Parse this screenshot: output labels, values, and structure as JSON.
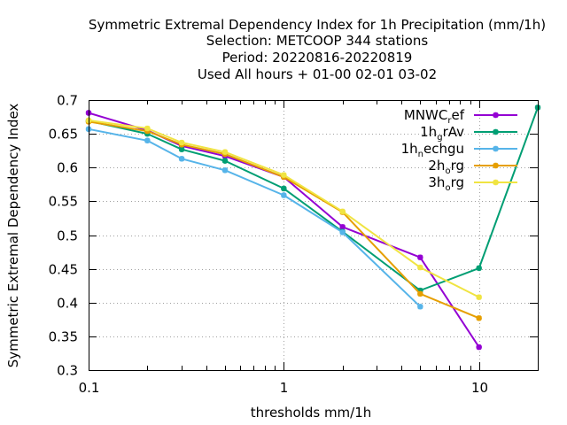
{
  "chart_data": {
    "type": "line",
    "title_lines": [
      "Symmetric Extremal Dependency Index  for 1h Precipitation (mm/1h)",
      "Selection: METCOOP    344 stations",
      "Period: 20220816-20220819",
      "Used  All hours + 01-00 02-01 03-02"
    ],
    "xlabel": "thresholds mm/1h",
    "ylabel": "Symmetric Extremal Dependency Index",
    "xscale": "log",
    "xlim": [
      0.1,
      20
    ],
    "ylim": [
      0.3,
      0.7
    ],
    "x_ticks": [
      0.1,
      1,
      10
    ],
    "x_tick_labels": [
      "0.1",
      "1",
      "10"
    ],
    "x_minor_ticks": [
      0.2,
      0.3,
      0.4,
      0.5,
      0.6,
      0.7,
      0.8,
      0.9,
      2,
      3,
      4,
      5,
      6,
      7,
      8,
      9,
      20
    ],
    "y_ticks": [
      0.3,
      0.35,
      0.4,
      0.45,
      0.5,
      0.55,
      0.6,
      0.65,
      0.7
    ],
    "y_tick_labels": [
      "0.3",
      "0.35",
      "0.4",
      "0.45",
      "0.5",
      "0.55",
      "0.6",
      "0.65",
      "0.7"
    ],
    "grid": true,
    "legend_position": "top-right",
    "series": [
      {
        "name": "MNWC_ref",
        "legend_main": "MNWC",
        "legend_sub": "r",
        "legend_rest": "ef",
        "color": "#9400d3",
        "x": [
          0.1,
          0.2,
          0.3,
          0.5,
          1,
          2,
          5,
          10
        ],
        "y": [
          0.681,
          0.655,
          0.632,
          0.617,
          0.586,
          0.512,
          0.467,
          0.334
        ]
      },
      {
        "name": "1h_grAv",
        "legend_main": "1h",
        "legend_sub": "g",
        "legend_rest": "rAv",
        "color": "#009e73",
        "x": [
          0.1,
          0.2,
          0.3,
          0.5,
          1,
          2,
          5,
          10,
          20
        ],
        "y": [
          0.669,
          0.65,
          0.627,
          0.61,
          0.569,
          0.505,
          0.418,
          0.451,
          0.689
        ]
      },
      {
        "name": "1h_nechgu",
        "legend_main": "1h",
        "legend_sub": "n",
        "legend_rest": "echgu",
        "color": "#56b4e9",
        "x": [
          0.1,
          0.2,
          0.3,
          0.5,
          1,
          2,
          5
        ],
        "y": [
          0.657,
          0.64,
          0.613,
          0.596,
          0.559,
          0.504,
          0.394
        ]
      },
      {
        "name": "2h_org",
        "legend_main": "2h",
        "legend_sub": "o",
        "legend_rest": "rg",
        "color": "#e69f00",
        "x": [
          0.1,
          0.2,
          0.3,
          0.5,
          1,
          2,
          5,
          10
        ],
        "y": [
          0.668,
          0.654,
          0.634,
          0.62,
          0.586,
          0.534,
          0.413,
          0.377
        ]
      },
      {
        "name": "3h_org",
        "legend_main": "3h",
        "legend_sub": "o",
        "legend_rest": "rg",
        "color": "#f0e442",
        "x": [
          0.1,
          0.2,
          0.3,
          0.5,
          1,
          2,
          5,
          10
        ],
        "y": [
          0.67,
          0.658,
          0.637,
          0.623,
          0.589,
          0.535,
          0.452,
          0.408
        ]
      }
    ]
  }
}
